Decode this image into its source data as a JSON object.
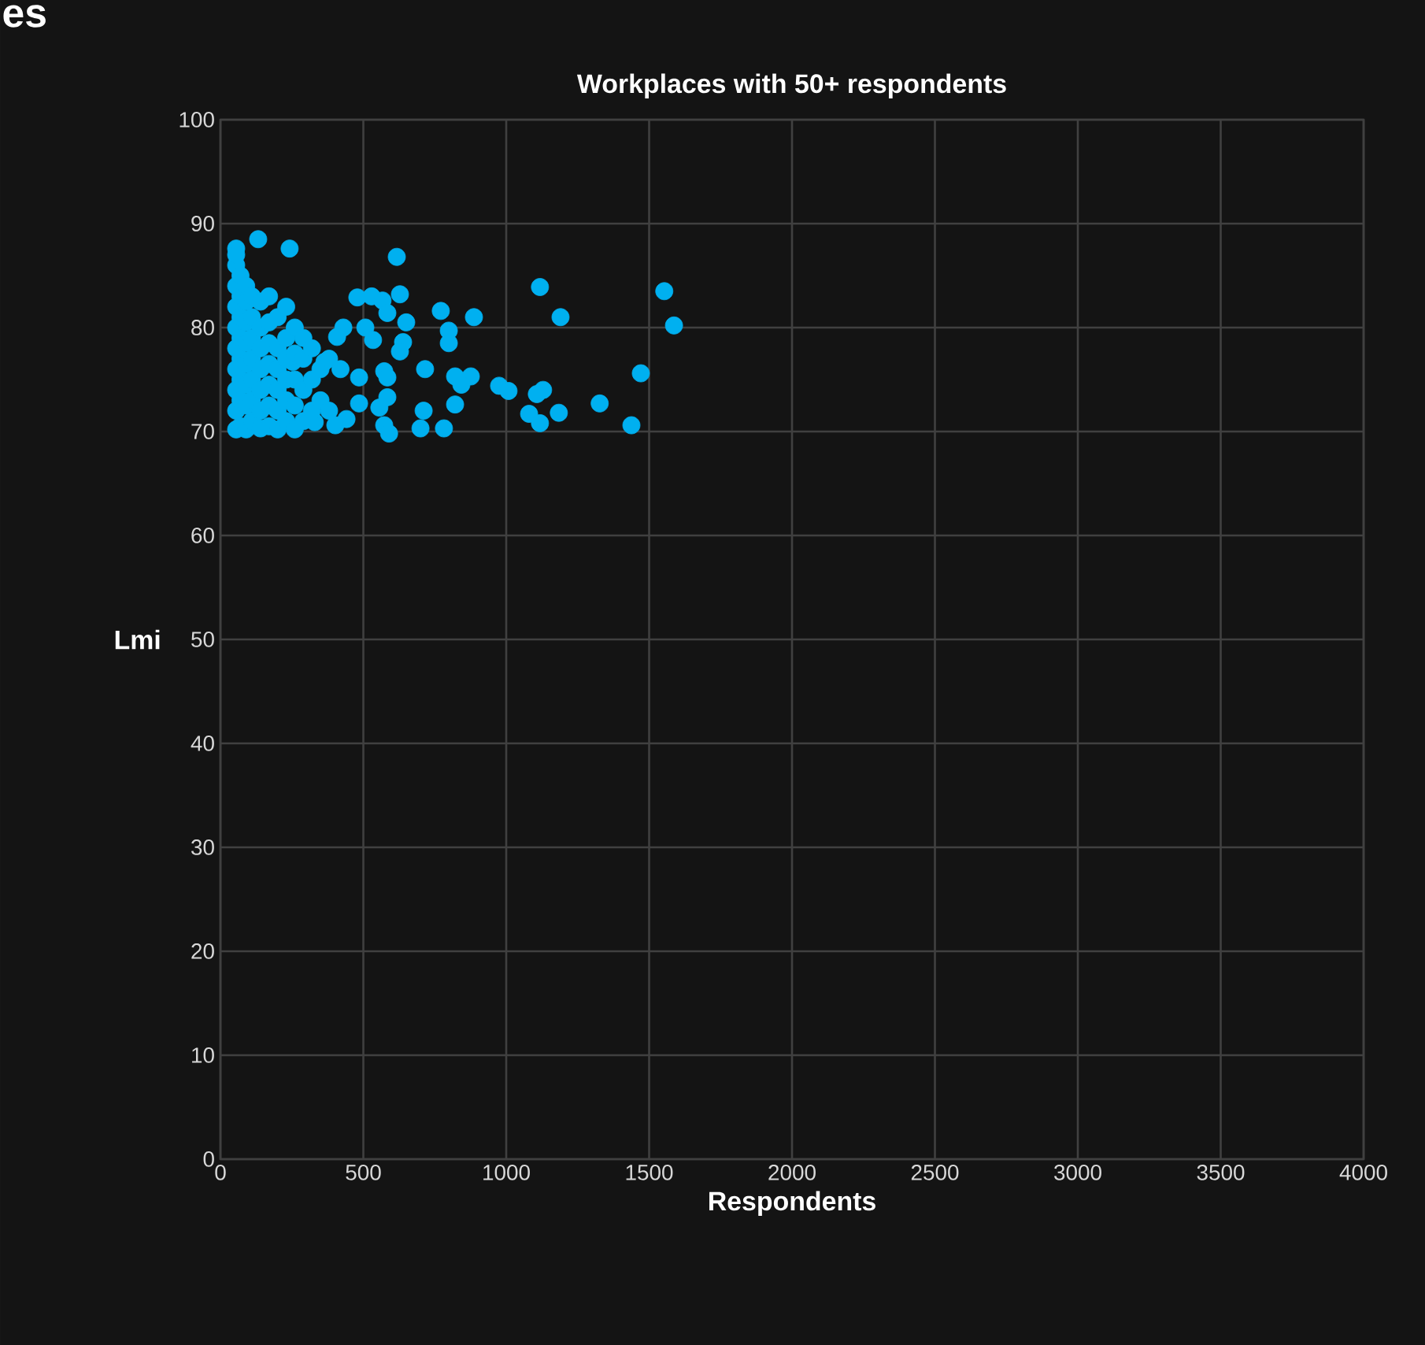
{
  "chart_data": {
    "type": "scatter",
    "title": "Workplaces with 50+ respondents",
    "xlabel": "Respondents",
    "ylabel": "Lmi",
    "annotations": [
      "es"
    ],
    "x": [
      55,
      132,
      242,
      617,
      1118,
      1553,
      1587,
      1190,
      887,
      771,
      799,
      799,
      628,
      479,
      529,
      567,
      584,
      650,
      507,
      534,
      639,
      628,
      716,
      573,
      584,
      430,
      408,
      821,
      876,
      843,
      975,
      1008,
      1129,
      1107,
      1327,
      1080,
      1184,
      1118,
      1438,
      1471,
      711,
      700,
      782,
      821,
      584,
      573,
      590,
      556,
      485,
      441,
      402,
      330,
      485,
      364,
      253,
      55,
      55,
      55,
      55,
      55,
      55,
      55,
      55,
      55,
      55,
      70,
      70,
      70,
      70,
      70,
      70,
      70,
      70,
      90,
      90,
      90,
      90,
      90,
      90,
      90,
      90,
      110,
      110,
      110,
      110,
      110,
      110,
      110,
      140,
      140,
      140,
      140,
      140,
      140,
      140,
      170,
      170,
      170,
      170,
      170,
      170,
      170,
      200,
      200,
      200,
      200,
      200,
      200,
      230,
      230,
      230,
      230,
      230,
      230,
      260,
      260,
      260,
      260,
      260,
      290,
      290,
      290,
      290,
      320,
      320,
      320,
      350,
      350,
      380,
      380,
      420
    ],
    "values": [
      87.6,
      88.5,
      87.6,
      86.8,
      83.9,
      83.5,
      80.2,
      81,
      81,
      81.6,
      79.7,
      78.5,
      83.2,
      82.9,
      83,
      82.6,
      81.4,
      80.5,
      80,
      78.8,
      78.6,
      77.7,
      76,
      75.8,
      75.2,
      80,
      79.1,
      75.3,
      75.3,
      74.5,
      74.4,
      73.9,
      74,
      73.6,
      72.7,
      71.7,
      71.8,
      70.8,
      70.6,
      75.6,
      72,
      70.3,
      70.3,
      72.6,
      73.3,
      70.6,
      69.8,
      72.3,
      72.7,
      71.2,
      70.6,
      70.9,
      75.2,
      76.7,
      76.7,
      70.2,
      72,
      74,
      76,
      78,
      80,
      82,
      84,
      86,
      87,
      70.5,
      73,
      75,
      77,
      79,
      81,
      83,
      85,
      70.2,
      72.5,
      74.5,
      76.5,
      78.5,
      80.5,
      82.5,
      84,
      71,
      73,
      75,
      77,
      79,
      81,
      83,
      70.3,
      72,
      74,
      76,
      78,
      80,
      82.5,
      70.5,
      72.5,
      74.5,
      76.5,
      78.5,
      80.5,
      83,
      70.2,
      72,
      74,
      76,
      78,
      81,
      71,
      73,
      75,
      77,
      79,
      82,
      70.2,
      72.5,
      75,
      77.5,
      80,
      71,
      74,
      77,
      79,
      72,
      75,
      78,
      73,
      76,
      72,
      77,
      76
    ],
    "color": "#00b0f0",
    "grid": true,
    "xlim": [
      0,
      4000
    ],
    "xticks": [
      0,
      500,
      1000,
      1500,
      2000,
      2500,
      3000,
      3500,
      4000
    ],
    "ylim": [
      0,
      100
    ],
    "yticks": [
      0,
      10,
      20,
      30,
      40,
      50,
      60,
      70,
      80,
      90,
      100
    ]
  }
}
